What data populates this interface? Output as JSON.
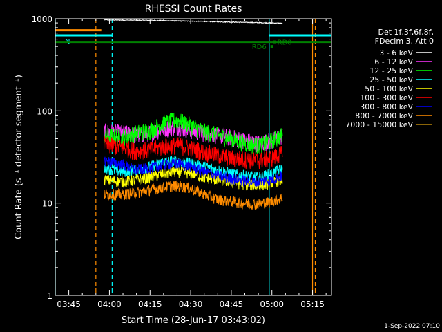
{
  "chart_data": {
    "type": "line",
    "title": "RHESSI Count Rates",
    "xlabel": "Start Time (28-Jun-17 03:43:02)",
    "ylabel": "Count Rate (s⁻¹ detector segment⁻¹)",
    "yscale": "log",
    "ylim": [
      1,
      1000
    ],
    "xlim": [
      "03:40",
      "05:22"
    ],
    "x_ticks": [
      "03:45",
      "04:00",
      "04:15",
      "04:30",
      "04:45",
      "05:00",
      "05:15"
    ],
    "y_ticks": [
      "1",
      "10",
      "100",
      "1000"
    ],
    "legend_header": [
      "Det 1f,3f,6f,8f,",
      "FDecim 3, Att 0"
    ],
    "legend_position": "right",
    "series": [
      {
        "name": "3 - 6 keV",
        "color": "#ffffff",
        "x": [
          "03:58",
          "04:15",
          "04:30",
          "04:45",
          "05:00",
          "05:04"
        ],
        "values": [
          970,
          960,
          940,
          920,
          900,
          890
        ]
      },
      {
        "name": "6 - 12 keV",
        "color": "#ff33ff",
        "x": [
          "03:58",
          "04:05",
          "04:10",
          "04:15",
          "04:20",
          "04:25",
          "04:30",
          "04:35",
          "04:40",
          "04:45",
          "04:50",
          "04:55",
          "05:00",
          "05:04"
        ],
        "values": [
          60,
          58,
          55,
          58,
          65,
          68,
          62,
          58,
          55,
          52,
          48,
          45,
          48,
          55
        ]
      },
      {
        "name": "12 - 25 keV",
        "color": "#00ff00",
        "x": [
          "03:58",
          "04:05",
          "04:10",
          "04:15",
          "04:20",
          "04:25",
          "04:30",
          "04:35",
          "04:40",
          "04:45",
          "04:50",
          "04:55",
          "05:00",
          "05:04"
        ],
        "values": [
          55,
          52,
          58,
          62,
          75,
          80,
          70,
          60,
          55,
          50,
          45,
          42,
          48,
          55
        ]
      },
      {
        "name": "25 - 50 keV",
        "color": "#00ffff",
        "x": [
          "03:58",
          "04:05",
          "04:10",
          "04:15",
          "04:20",
          "04:25",
          "04:30",
          "04:35",
          "04:40",
          "04:45",
          "04:50",
          "04:55",
          "05:00",
          "05:04"
        ],
        "values": [
          24,
          22,
          23,
          25,
          28,
          29,
          27,
          25,
          23,
          21,
          20,
          19,
          21,
          24
        ]
      },
      {
        "name": "50 - 100 keV",
        "color": "#ffff00",
        "x": [
          "03:58",
          "04:05",
          "04:10",
          "04:15",
          "04:20",
          "04:25",
          "04:30",
          "04:35",
          "04:40",
          "04:45",
          "04:50",
          "04:55",
          "05:00",
          "05:04"
        ],
        "values": [
          18,
          17,
          18,
          19,
          21,
          22,
          21,
          19,
          18,
          17,
          16,
          15.5,
          16.5,
          18
        ]
      },
      {
        "name": "100 - 300 keV",
        "color": "#ff0000",
        "x": [
          "03:58",
          "04:05",
          "04:10",
          "04:15",
          "04:20",
          "04:25",
          "04:30",
          "04:35",
          "04:40",
          "04:45",
          "04:50",
          "04:55",
          "05:00",
          "05:04"
        ],
        "values": [
          44,
          40,
          37,
          38,
          41,
          43,
          40,
          36,
          33,
          31,
          30,
          29,
          31,
          35
        ]
      },
      {
        "name": "300 - 800 keV",
        "color": "#0000ff",
        "x": [
          "03:58",
          "04:05",
          "04:10",
          "04:15",
          "04:20",
          "04:25",
          "04:30",
          "04:35",
          "04:40",
          "04:45",
          "04:50",
          "04:55",
          "05:00",
          "05:04"
        ],
        "values": [
          29,
          26,
          23,
          24,
          26,
          27,
          25,
          22,
          20,
          18.5,
          17.5,
          17,
          18,
          20
        ]
      },
      {
        "name": "800 - 7000 keV",
        "color": "#ff8c00",
        "x": [
          "03:58",
          "04:05",
          "04:10",
          "04:15",
          "04:20",
          "04:25",
          "04:30",
          "04:35",
          "04:40",
          "04:45",
          "04:50",
          "04:55",
          "05:00",
          "05:04"
        ],
        "values": [
          12.5,
          12.5,
          13,
          14,
          15,
          15.5,
          14.5,
          12.5,
          11,
          10.5,
          10,
          9.8,
          10.5,
          11.5
        ]
      },
      {
        "name": "7000 - 15000 keV",
        "color": "#b8860b",
        "x": [],
        "values": []
      }
    ],
    "flags": [
      {
        "label": "",
        "color": "#ff8c00",
        "y": 750,
        "x_start": "03:40",
        "x_end": "03:57"
      },
      {
        "label": "N",
        "color": "#00ffff",
        "y": 660,
        "x_start": "03:40",
        "x_end": "04:01"
      },
      {
        "label": "",
        "color": "#00ffff",
        "y": 660,
        "x_start": "04:59",
        "x_end": "05:22"
      },
      {
        "label": "",
        "color": "#008000",
        "y": 560,
        "x_start": "03:40",
        "x_end": "05:22"
      },
      {
        "label": "RD6",
        "color": "#008000",
        "y": 500,
        "x_start": "05:00",
        "x_end": "05:00"
      },
      {
        "label": "RD0",
        "color": "#008000",
        "y": 560,
        "x_start": "05:01",
        "x_end": "05:01"
      }
    ],
    "vertical_lines": [
      {
        "x": "03:40",
        "color": "#00ffff",
        "style": "solid"
      },
      {
        "x": "03:55",
        "color": "#ff8c00",
        "style": "dashed"
      },
      {
        "x": "04:01",
        "color": "#00ffff",
        "style": "dashed"
      },
      {
        "x": "04:59",
        "color": "#00ffff",
        "style": "solid"
      },
      {
        "x": "05:15",
        "color": "#ff8c00",
        "style": "solid"
      },
      {
        "x": "05:16",
        "color": "#ff8c00",
        "style": "dashed"
      }
    ],
    "footer": "1-Sep-2022 07:10"
  }
}
